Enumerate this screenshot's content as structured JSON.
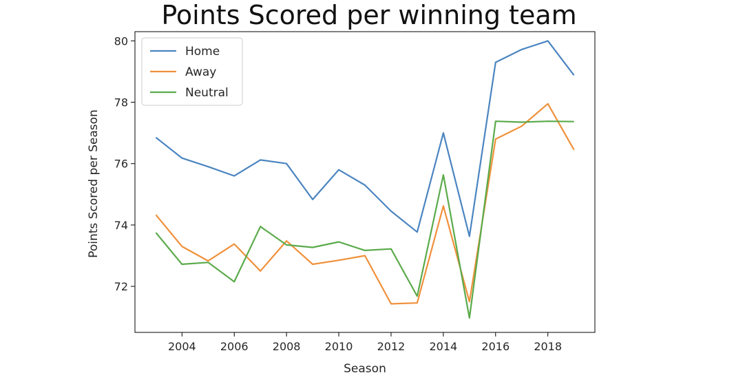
{
  "chart_data": {
    "type": "line",
    "title": "Points Scored per winning team",
    "xlabel": "Season",
    "ylabel": "Points Scored per Season",
    "x": [
      2003,
      2004,
      2005,
      2006,
      2007,
      2008,
      2009,
      2010,
      2011,
      2012,
      2013,
      2014,
      2015,
      2016,
      2017,
      2018,
      2019
    ],
    "xlim": [
      2002.2,
      2019.8
    ],
    "ylim": [
      70.5,
      80.3
    ],
    "xticks": [
      2004,
      2006,
      2008,
      2010,
      2012,
      2014,
      2016,
      2018
    ],
    "yticks": [
      72,
      74,
      76,
      78,
      80
    ],
    "grid": false,
    "legend_position": "top-left",
    "series": [
      {
        "name": "Home",
        "color": "#4a84c0",
        "values": [
          76.85,
          76.18,
          75.9,
          75.6,
          76.12,
          76.0,
          74.83,
          75.8,
          75.3,
          74.45,
          73.77,
          77.0,
          73.63,
          79.3,
          79.72,
          80.0,
          78.88
        ]
      },
      {
        "name": "Away",
        "color": "#f0903a",
        "values": [
          74.33,
          73.3,
          72.83,
          73.38,
          72.5,
          73.48,
          72.72,
          72.85,
          73.0,
          71.43,
          71.46,
          74.62,
          71.5,
          76.8,
          77.22,
          77.95,
          76.45
        ]
      },
      {
        "name": "Neutral",
        "color": "#5aaa4a",
        "values": [
          73.75,
          72.72,
          72.78,
          72.15,
          73.95,
          73.35,
          73.27,
          73.45,
          73.17,
          73.22,
          71.68,
          75.63,
          70.97,
          77.38,
          77.35,
          77.38,
          77.37
        ]
      }
    ]
  }
}
